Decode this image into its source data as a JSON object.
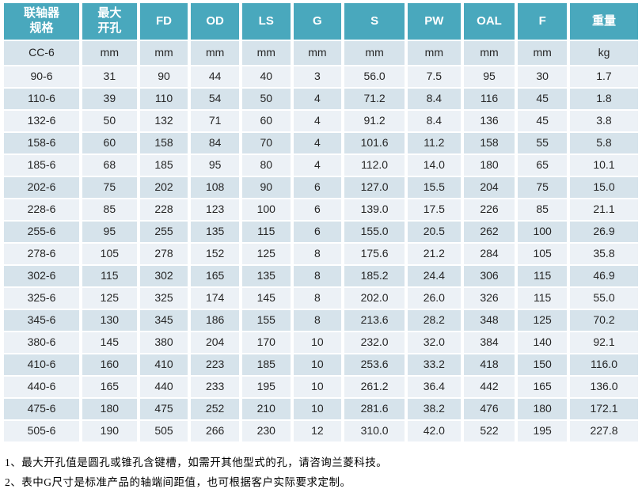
{
  "colors": {
    "header_teal": "#49a8bd",
    "row_dark": "#d6e3eb",
    "row_light": "#ecf1f6",
    "header_text": "#ffffff",
    "cell_text": "#262626"
  },
  "table": {
    "headers": [
      "联轴器\n规格",
      "最大\n开孔",
      "FD",
      "OD",
      "LS",
      "G",
      "S",
      "PW",
      "OAL",
      "F",
      "重量"
    ],
    "units": [
      "CC-6",
      "mm",
      "mm",
      "mm",
      "mm",
      "mm",
      "mm",
      "mm",
      "mm",
      "mm",
      "kg"
    ],
    "rows": [
      [
        "90-6",
        "31",
        "90",
        "44",
        "40",
        "3",
        "56.0",
        "7.5",
        "95",
        "30",
        "1.7"
      ],
      [
        "110-6",
        "39",
        "110",
        "54",
        "50",
        "4",
        "71.2",
        "8.4",
        "116",
        "45",
        "1.8"
      ],
      [
        "132-6",
        "50",
        "132",
        "71",
        "60",
        "4",
        "91.2",
        "8.4",
        "136",
        "45",
        "3.8"
      ],
      [
        "158-6",
        "60",
        "158",
        "84",
        "70",
        "4",
        "101.6",
        "11.2",
        "158",
        "55",
        "5.8"
      ],
      [
        "185-6",
        "68",
        "185",
        "95",
        "80",
        "4",
        "112.0",
        "14.0",
        "180",
        "65",
        "10.1"
      ],
      [
        "202-6",
        "75",
        "202",
        "108",
        "90",
        "6",
        "127.0",
        "15.5",
        "204",
        "75",
        "15.0"
      ],
      [
        "228-6",
        "85",
        "228",
        "123",
        "100",
        "6",
        "139.0",
        "17.5",
        "226",
        "85",
        "21.1"
      ],
      [
        "255-6",
        "95",
        "255",
        "135",
        "115",
        "6",
        "155.0",
        "20.5",
        "262",
        "100",
        "26.9"
      ],
      [
        "278-6",
        "105",
        "278",
        "152",
        "125",
        "8",
        "175.6",
        "21.2",
        "284",
        "105",
        "35.8"
      ],
      [
        "302-6",
        "115",
        "302",
        "165",
        "135",
        "8",
        "185.2",
        "24.4",
        "306",
        "115",
        "46.9"
      ],
      [
        "325-6",
        "125",
        "325",
        "174",
        "145",
        "8",
        "202.0",
        "26.0",
        "326",
        "115",
        "55.0"
      ],
      [
        "345-6",
        "130",
        "345",
        "186",
        "155",
        "8",
        "213.6",
        "28.2",
        "348",
        "125",
        "70.2"
      ],
      [
        "380-6",
        "145",
        "380",
        "204",
        "170",
        "10",
        "232.0",
        "32.0",
        "384",
        "140",
        "92.1"
      ],
      [
        "410-6",
        "160",
        "410",
        "223",
        "185",
        "10",
        "253.6",
        "33.2",
        "418",
        "150",
        "116.0"
      ],
      [
        "440-6",
        "165",
        "440",
        "233",
        "195",
        "10",
        "261.2",
        "36.4",
        "442",
        "165",
        "136.0"
      ],
      [
        "475-6",
        "180",
        "475",
        "252",
        "210",
        "10",
        "281.6",
        "38.2",
        "476",
        "180",
        "172.1"
      ],
      [
        "505-6",
        "190",
        "505",
        "266",
        "230",
        "12",
        "310.0",
        "42.0",
        "522",
        "195",
        "227.8"
      ]
    ]
  },
  "notes": [
    "1、最大开孔值是圆孔或锥孔含键槽，如需开其他型式的孔，请咨询兰菱科技。",
    "2、表中G尺寸是标准产品的轴端间距值，也可根据客户实际要求定制。"
  ]
}
